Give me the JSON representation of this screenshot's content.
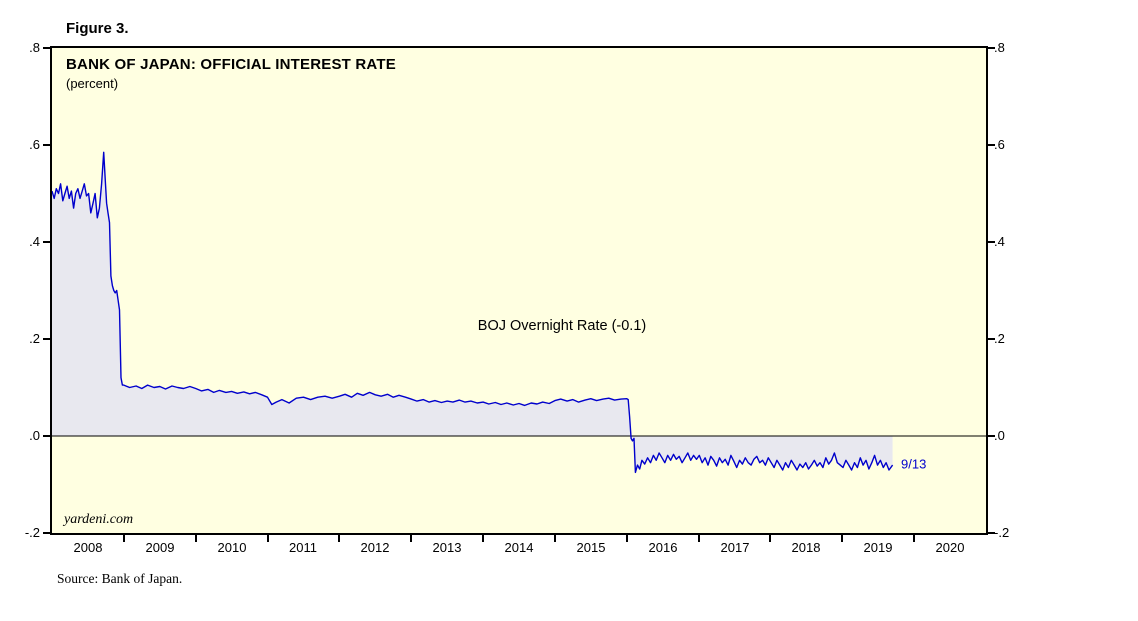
{
  "figure": {
    "label": "Figure 3.",
    "source": "Source: Bank of Japan."
  },
  "chart_data": {
    "type": "line",
    "title": "BANK OF JAPAN: OFFICIAL INTEREST RATE",
    "subtitle": "(percent)",
    "watermark": "yardeni.com",
    "annotation": {
      "text": "BOJ Overnight Rate (-0.1)",
      "x": 2015.1,
      "y": 0.227
    },
    "end_label": {
      "text": "9/13",
      "x": 2019.82,
      "y": -0.058
    },
    "x_domain": [
      2008,
      2021
    ],
    "y_domain": [
      -0.2,
      0.8
    ],
    "x_ticks": {
      "label_years": [
        2008,
        2009,
        2010,
        2011,
        2012,
        2013,
        2014,
        2015,
        2016,
        2017,
        2018,
        2019,
        2020
      ],
      "boundary_ticks": [
        2009,
        2010,
        2011,
        2012,
        2013,
        2014,
        2015,
        2016,
        2017,
        2018,
        2019,
        2020
      ]
    },
    "y_ticks": [
      {
        "v": 0.8,
        "label": ".8"
      },
      {
        "v": 0.6,
        "label": ".6"
      },
      {
        "v": 0.4,
        "label": ".4"
      },
      {
        "v": 0.2,
        "label": ".2"
      },
      {
        "v": 0.0,
        "label": ".0"
      },
      {
        "v": -0.2,
        "label": "-.2"
      }
    ],
    "colors": {
      "line": "#0000cc",
      "fill": "#e8e8ef",
      "plot_bg": "#ffffe1",
      "zero_line": "#000000"
    },
    "series": [
      {
        "name": "BOJ Overnight Rate",
        "points": [
          [
            2008.0,
            0.505
          ],
          [
            2008.03,
            0.49
          ],
          [
            2008.06,
            0.51
          ],
          [
            2008.09,
            0.5
          ],
          [
            2008.12,
            0.52
          ],
          [
            2008.15,
            0.485
          ],
          [
            2008.18,
            0.5
          ],
          [
            2008.21,
            0.515
          ],
          [
            2008.24,
            0.49
          ],
          [
            2008.27,
            0.505
          ],
          [
            2008.3,
            0.47
          ],
          [
            2008.33,
            0.5
          ],
          [
            2008.36,
            0.51
          ],
          [
            2008.39,
            0.49
          ],
          [
            2008.42,
            0.505
          ],
          [
            2008.45,
            0.52
          ],
          [
            2008.48,
            0.495
          ],
          [
            2008.51,
            0.5
          ],
          [
            2008.54,
            0.46
          ],
          [
            2008.57,
            0.48
          ],
          [
            2008.6,
            0.5
          ],
          [
            2008.63,
            0.45
          ],
          [
            2008.66,
            0.47
          ],
          [
            2008.69,
            0.52
          ],
          [
            2008.72,
            0.585
          ],
          [
            2008.74,
            0.53
          ],
          [
            2008.76,
            0.48
          ],
          [
            2008.78,
            0.46
          ],
          [
            2008.8,
            0.44
          ],
          [
            2008.82,
            0.33
          ],
          [
            2008.84,
            0.31
          ],
          [
            2008.86,
            0.3
          ],
          [
            2008.88,
            0.295
          ],
          [
            2008.9,
            0.3
          ],
          [
            2008.92,
            0.28
          ],
          [
            2008.94,
            0.26
          ],
          [
            2008.96,
            0.12
          ],
          [
            2008.98,
            0.105
          ],
          [
            2009.0,
            0.105
          ],
          [
            2009.08,
            0.1
          ],
          [
            2009.17,
            0.103
          ],
          [
            2009.25,
            0.098
          ],
          [
            2009.33,
            0.105
          ],
          [
            2009.42,
            0.1
          ],
          [
            2009.5,
            0.102
          ],
          [
            2009.58,
            0.097
          ],
          [
            2009.67,
            0.103
          ],
          [
            2009.75,
            0.1
          ],
          [
            2009.83,
            0.098
          ],
          [
            2009.92,
            0.102
          ],
          [
            2010.0,
            0.098
          ],
          [
            2010.08,
            0.093
          ],
          [
            2010.17,
            0.096
          ],
          [
            2010.25,
            0.09
          ],
          [
            2010.33,
            0.094
          ],
          [
            2010.42,
            0.09
          ],
          [
            2010.5,
            0.092
          ],
          [
            2010.58,
            0.088
          ],
          [
            2010.67,
            0.091
          ],
          [
            2010.75,
            0.087
          ],
          [
            2010.83,
            0.09
          ],
          [
            2010.92,
            0.085
          ],
          [
            2011.0,
            0.08
          ],
          [
            2011.06,
            0.065
          ],
          [
            2011.12,
            0.07
          ],
          [
            2011.2,
            0.075
          ],
          [
            2011.3,
            0.068
          ],
          [
            2011.4,
            0.078
          ],
          [
            2011.5,
            0.08
          ],
          [
            2011.6,
            0.075
          ],
          [
            2011.7,
            0.08
          ],
          [
            2011.8,
            0.082
          ],
          [
            2011.9,
            0.078
          ],
          [
            2012.0,
            0.082
          ],
          [
            2012.08,
            0.086
          ],
          [
            2012.17,
            0.08
          ],
          [
            2012.25,
            0.088
          ],
          [
            2012.33,
            0.084
          ],
          [
            2012.42,
            0.09
          ],
          [
            2012.5,
            0.085
          ],
          [
            2012.58,
            0.082
          ],
          [
            2012.67,
            0.086
          ],
          [
            2012.75,
            0.08
          ],
          [
            2012.83,
            0.084
          ],
          [
            2012.92,
            0.08
          ],
          [
            2013.0,
            0.076
          ],
          [
            2013.08,
            0.072
          ],
          [
            2013.17,
            0.075
          ],
          [
            2013.25,
            0.07
          ],
          [
            2013.33,
            0.073
          ],
          [
            2013.42,
            0.069
          ],
          [
            2013.5,
            0.072
          ],
          [
            2013.58,
            0.07
          ],
          [
            2013.67,
            0.074
          ],
          [
            2013.75,
            0.07
          ],
          [
            2013.83,
            0.072
          ],
          [
            2013.92,
            0.068
          ],
          [
            2014.0,
            0.07
          ],
          [
            2014.08,
            0.066
          ],
          [
            2014.17,
            0.069
          ],
          [
            2014.25,
            0.065
          ],
          [
            2014.33,
            0.068
          ],
          [
            2014.42,
            0.064
          ],
          [
            2014.5,
            0.067
          ],
          [
            2014.58,
            0.063
          ],
          [
            2014.67,
            0.068
          ],
          [
            2014.75,
            0.066
          ],
          [
            2014.83,
            0.07
          ],
          [
            2014.92,
            0.067
          ],
          [
            2015.0,
            0.073
          ],
          [
            2015.08,
            0.076
          ],
          [
            2015.17,
            0.072
          ],
          [
            2015.25,
            0.075
          ],
          [
            2015.33,
            0.07
          ],
          [
            2015.42,
            0.074
          ],
          [
            2015.5,
            0.077
          ],
          [
            2015.58,
            0.073
          ],
          [
            2015.67,
            0.076
          ],
          [
            2015.75,
            0.078
          ],
          [
            2015.83,
            0.074
          ],
          [
            2015.92,
            0.076
          ],
          [
            2016.0,
            0.077
          ],
          [
            2016.02,
            0.075
          ],
          [
            2016.04,
            0.04
          ],
          [
            2016.06,
            -0.005
          ],
          [
            2016.08,
            -0.01
          ],
          [
            2016.1,
            -0.005
          ],
          [
            2016.12,
            -0.075
          ],
          [
            2016.15,
            -0.06
          ],
          [
            2016.18,
            -0.068
          ],
          [
            2016.21,
            -0.05
          ],
          [
            2016.25,
            -0.058
          ],
          [
            2016.29,
            -0.045
          ],
          [
            2016.33,
            -0.055
          ],
          [
            2016.37,
            -0.04
          ],
          [
            2016.41,
            -0.05
          ],
          [
            2016.45,
            -0.035
          ],
          [
            2016.49,
            -0.045
          ],
          [
            2016.53,
            -0.055
          ],
          [
            2016.57,
            -0.04
          ],
          [
            2016.61,
            -0.05
          ],
          [
            2016.65,
            -0.038
          ],
          [
            2016.69,
            -0.048
          ],
          [
            2016.73,
            -0.042
          ],
          [
            2016.77,
            -0.055
          ],
          [
            2016.81,
            -0.045
          ],
          [
            2016.85,
            -0.035
          ],
          [
            2016.89,
            -0.05
          ],
          [
            2016.93,
            -0.04
          ],
          [
            2016.97,
            -0.048
          ],
          [
            2017.01,
            -0.04
          ],
          [
            2017.05,
            -0.055
          ],
          [
            2017.09,
            -0.045
          ],
          [
            2017.13,
            -0.06
          ],
          [
            2017.17,
            -0.042
          ],
          [
            2017.21,
            -0.05
          ],
          [
            2017.25,
            -0.062
          ],
          [
            2017.29,
            -0.045
          ],
          [
            2017.33,
            -0.055
          ],
          [
            2017.37,
            -0.048
          ],
          [
            2017.41,
            -0.06
          ],
          [
            2017.45,
            -0.04
          ],
          [
            2017.49,
            -0.052
          ],
          [
            2017.53,
            -0.065
          ],
          [
            2017.57,
            -0.05
          ],
          [
            2017.61,
            -0.058
          ],
          [
            2017.65,
            -0.045
          ],
          [
            2017.69,
            -0.055
          ],
          [
            2017.73,
            -0.06
          ],
          [
            2017.77,
            -0.048
          ],
          [
            2017.81,
            -0.042
          ],
          [
            2017.85,
            -0.055
          ],
          [
            2017.89,
            -0.05
          ],
          [
            2017.93,
            -0.06
          ],
          [
            2017.97,
            -0.045
          ],
          [
            2018.01,
            -0.055
          ],
          [
            2018.05,
            -0.065
          ],
          [
            2018.09,
            -0.05
          ],
          [
            2018.13,
            -0.06
          ],
          [
            2018.17,
            -0.07
          ],
          [
            2018.21,
            -0.055
          ],
          [
            2018.25,
            -0.065
          ],
          [
            2018.29,
            -0.05
          ],
          [
            2018.33,
            -0.06
          ],
          [
            2018.37,
            -0.07
          ],
          [
            2018.41,
            -0.058
          ],
          [
            2018.45,
            -0.065
          ],
          [
            2018.49,
            -0.055
          ],
          [
            2018.53,
            -0.068
          ],
          [
            2018.57,
            -0.06
          ],
          [
            2018.61,
            -0.05
          ],
          [
            2018.65,
            -0.062
          ],
          [
            2018.69,
            -0.055
          ],
          [
            2018.73,
            -0.065
          ],
          [
            2018.77,
            -0.045
          ],
          [
            2018.81,
            -0.058
          ],
          [
            2018.85,
            -0.05
          ],
          [
            2018.89,
            -0.035
          ],
          [
            2018.93,
            -0.055
          ],
          [
            2018.97,
            -0.06
          ],
          [
            2019.01,
            -0.065
          ],
          [
            2019.05,
            -0.05
          ],
          [
            2019.09,
            -0.06
          ],
          [
            2019.13,
            -0.07
          ],
          [
            2019.17,
            -0.055
          ],
          [
            2019.21,
            -0.065
          ],
          [
            2019.25,
            -0.045
          ],
          [
            2019.29,
            -0.06
          ],
          [
            2019.33,
            -0.05
          ],
          [
            2019.37,
            -0.068
          ],
          [
            2019.41,
            -0.055
          ],
          [
            2019.45,
            -0.04
          ],
          [
            2019.49,
            -0.06
          ],
          [
            2019.53,
            -0.05
          ],
          [
            2019.57,
            -0.065
          ],
          [
            2019.61,
            -0.055
          ],
          [
            2019.65,
            -0.07
          ],
          [
            2019.7,
            -0.06
          ]
        ]
      }
    ]
  }
}
